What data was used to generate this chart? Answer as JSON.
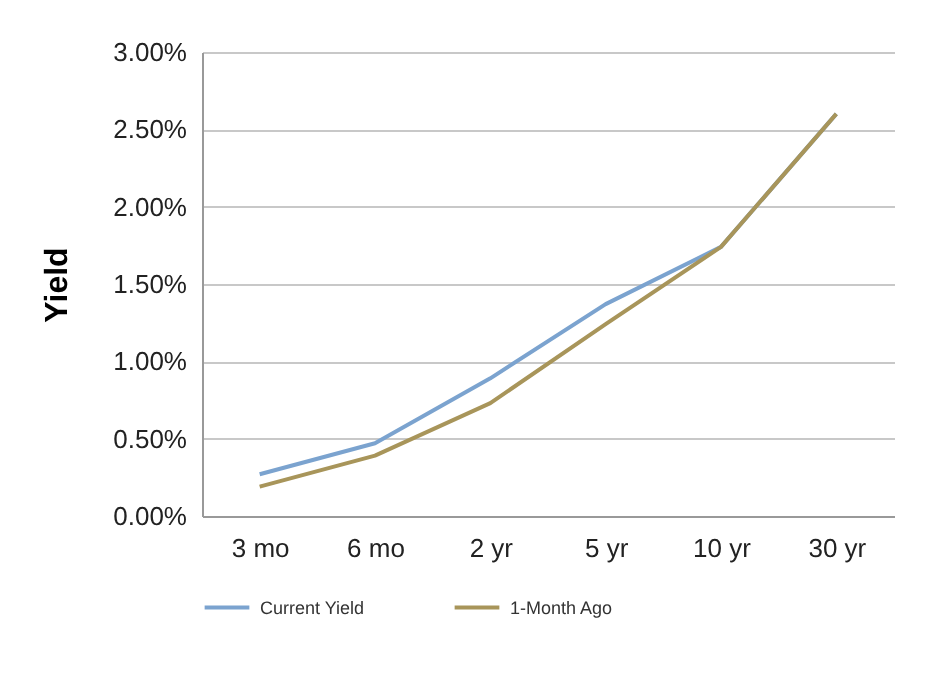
{
  "chart_data": {
    "type": "line",
    "ylabel": "Yield",
    "categories": [
      "3 mo",
      "6 mo",
      "2 yr",
      "5 yr",
      "10 yr",
      "30 yr"
    ],
    "series": [
      {
        "name": "Current Yield",
        "color": "#7ba3cf",
        "values": [
          0.27,
          0.47,
          0.89,
          1.37,
          1.74,
          2.6
        ]
      },
      {
        "name": "1-Month Ago",
        "color": "#a8955a",
        "values": [
          0.19,
          0.39,
          0.73,
          1.24,
          1.74,
          2.6
        ]
      }
    ],
    "ylim": [
      0,
      3
    ],
    "yticks": [
      {
        "value": 0,
        "label": "0.00%"
      },
      {
        "value": 0.5,
        "label": "0.50%"
      },
      {
        "value": 1,
        "label": "1.00%"
      },
      {
        "value": 1.5,
        "label": "1.50%"
      },
      {
        "value": 2,
        "label": "2.00%"
      },
      {
        "value": 2.5,
        "label": "2.50%"
      },
      {
        "value": 3,
        "label": "3.00%"
      }
    ],
    "grid": "y",
    "legend": "bottom",
    "marker": "none",
    "line_style": "solid"
  }
}
